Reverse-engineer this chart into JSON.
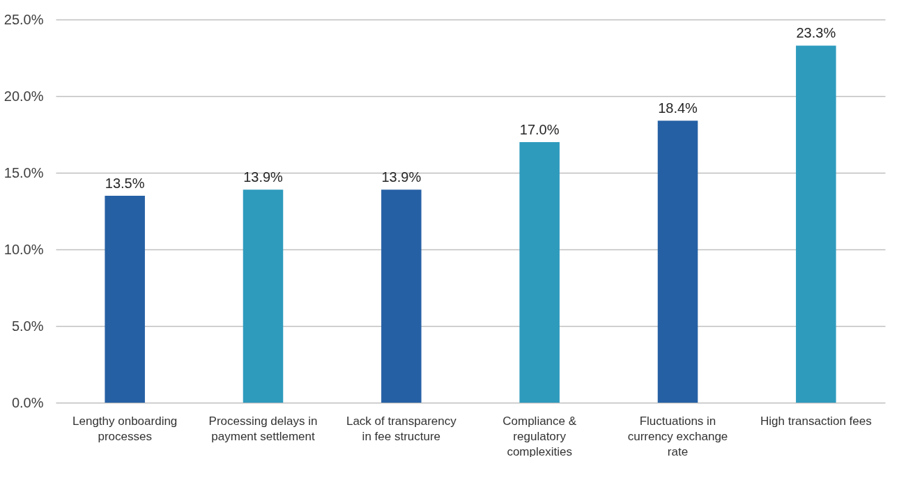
{
  "chart_data": {
    "type": "bar",
    "categories": [
      "Lengthy onboarding processes",
      "Processing delays in payment settlement",
      "Lack of transparency in fee structure",
      "Compliance & regulatory complexities",
      "Fluctuations in currency exchange rate",
      "High transaction fees"
    ],
    "values": [
      13.5,
      13.9,
      13.9,
      17.0,
      18.4,
      23.3
    ],
    "value_labels": [
      "13.5%",
      "13.9%",
      "13.9%",
      "17.0%",
      "18.4%",
      "23.3%"
    ],
    "colors": [
      "#2660a4",
      "#2e9bbd",
      "#2660a4",
      "#2e9bbd",
      "#2660a4",
      "#2e9bbd"
    ],
    "ylim": [
      0,
      25
    ],
    "yticks": [
      {
        "value": 0,
        "label": "0.0%"
      },
      {
        "value": 5,
        "label": "5.0%"
      },
      {
        "value": 10,
        "label": "10.0%"
      },
      {
        "value": 15,
        "label": "15.0%"
      },
      {
        "value": 20,
        "label": "20.0%"
      },
      {
        "value": 25,
        "label": "25.0%"
      }
    ],
    "grid": "y",
    "legend": false
  }
}
